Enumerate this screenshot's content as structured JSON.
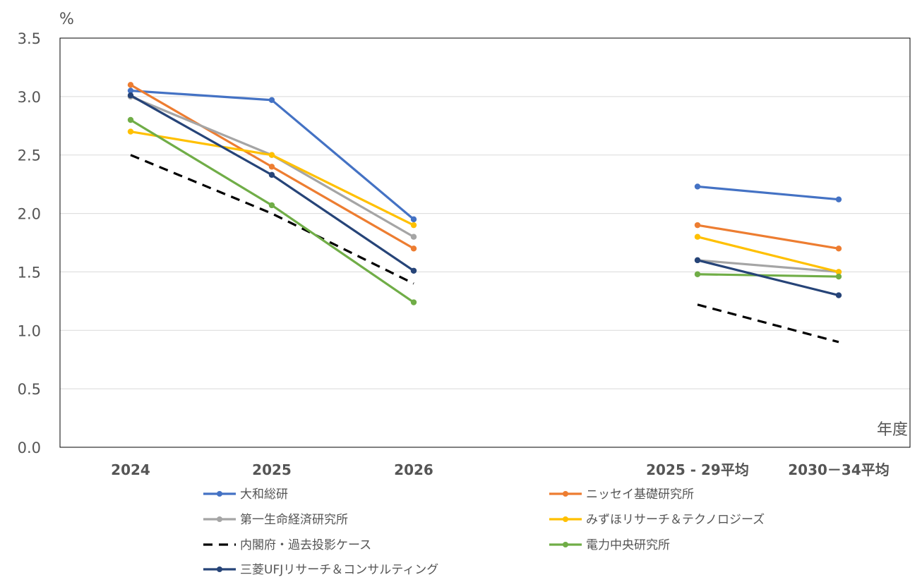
{
  "chart_data": {
    "type": "line",
    "y_unit_label": "%",
    "x_unit_label": "年度",
    "categories": [
      "2024",
      "2025",
      "2026",
      "2025 - 29平均",
      "2030－34平均"
    ],
    "yticks": [
      "0.0",
      "0.5",
      "1.0",
      "1.5",
      "2.0",
      "2.5",
      "3.0",
      "3.5"
    ],
    "ylim": [
      0,
      3.5
    ],
    "grid": true,
    "legend_position": "bottom",
    "series": [
      {
        "name": "大和総研",
        "color": "#4472C4",
        "dash": false,
        "marker": true,
        "values": [
          3.05,
          2.97,
          1.95,
          2.23,
          2.12
        ]
      },
      {
        "name": "ニッセイ基礎研究所",
        "color": "#ED7D31",
        "dash": false,
        "marker": true,
        "values": [
          3.1,
          2.4,
          1.7,
          1.9,
          1.7
        ]
      },
      {
        "name": "第一生命経済研究所",
        "color": "#A5A5A5",
        "dash": false,
        "marker": true,
        "values": [
          3.0,
          2.5,
          1.8,
          1.6,
          1.5
        ]
      },
      {
        "name": "みずほリサーチ＆テクノロジーズ",
        "color": "#FFC000",
        "dash": false,
        "marker": true,
        "values": [
          2.7,
          2.5,
          1.9,
          1.8,
          1.5
        ]
      },
      {
        "name": "内閣府・過去投影ケース",
        "color": "#000000",
        "dash": true,
        "marker": false,
        "values": [
          2.5,
          2.0,
          1.4,
          1.22,
          0.9
        ]
      },
      {
        "name": "電力中央研究所",
        "color": "#70AD47",
        "dash": false,
        "marker": true,
        "values": [
          2.8,
          2.07,
          1.24,
          1.48,
          1.46
        ]
      },
      {
        "name": "三菱UFJリサーチ＆コンサルティング",
        "color": "#264478",
        "dash": false,
        "marker": true,
        "values": [
          3.01,
          2.33,
          1.51,
          1.6,
          1.3
        ]
      }
    ]
  }
}
